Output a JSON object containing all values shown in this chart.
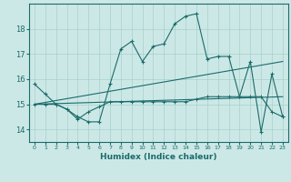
{
  "xlabel": "Humidex (Indice chaleur)",
  "background_color": "#cce8e6",
  "grid_color": "#a8d0cc",
  "line_color": "#1a6b6b",
  "xlim": [
    -0.5,
    23.5
  ],
  "ylim": [
    13.5,
    19.0
  ],
  "yticks": [
    14,
    15,
    16,
    17,
    18
  ],
  "xticks": [
    0,
    1,
    2,
    3,
    4,
    5,
    6,
    7,
    8,
    9,
    10,
    11,
    12,
    13,
    14,
    15,
    16,
    17,
    18,
    19,
    20,
    21,
    22,
    23
  ],
  "line1_x": [
    0,
    1,
    2,
    3,
    4,
    5,
    6,
    7,
    8,
    9,
    10,
    11,
    12,
    13,
    14,
    15,
    16,
    17,
    18,
    19,
    20,
    21,
    22,
    23
  ],
  "line1_y": [
    15.8,
    15.4,
    15.0,
    14.8,
    14.5,
    14.3,
    14.3,
    15.8,
    17.2,
    17.5,
    16.7,
    17.3,
    17.4,
    18.2,
    18.5,
    18.6,
    16.8,
    16.9,
    16.9,
    15.3,
    16.7,
    13.9,
    16.2,
    14.5
  ],
  "line2_x": [
    0,
    23
  ],
  "line2_y": [
    15.0,
    16.7
  ],
  "line3_x": [
    0,
    23
  ],
  "line3_y": [
    15.0,
    15.3
  ],
  "line4_x": [
    0,
    1,
    2,
    3,
    4,
    5,
    6,
    7,
    8,
    9,
    10,
    11,
    12,
    13,
    14,
    15,
    16,
    17,
    18,
    19,
    20,
    21,
    22,
    23
  ],
  "line4_y": [
    15.0,
    15.0,
    15.0,
    14.8,
    14.4,
    14.7,
    14.9,
    15.1,
    15.1,
    15.1,
    15.1,
    15.1,
    15.1,
    15.1,
    15.1,
    15.2,
    15.3,
    15.3,
    15.3,
    15.3,
    15.3,
    15.3,
    14.7,
    14.5
  ]
}
